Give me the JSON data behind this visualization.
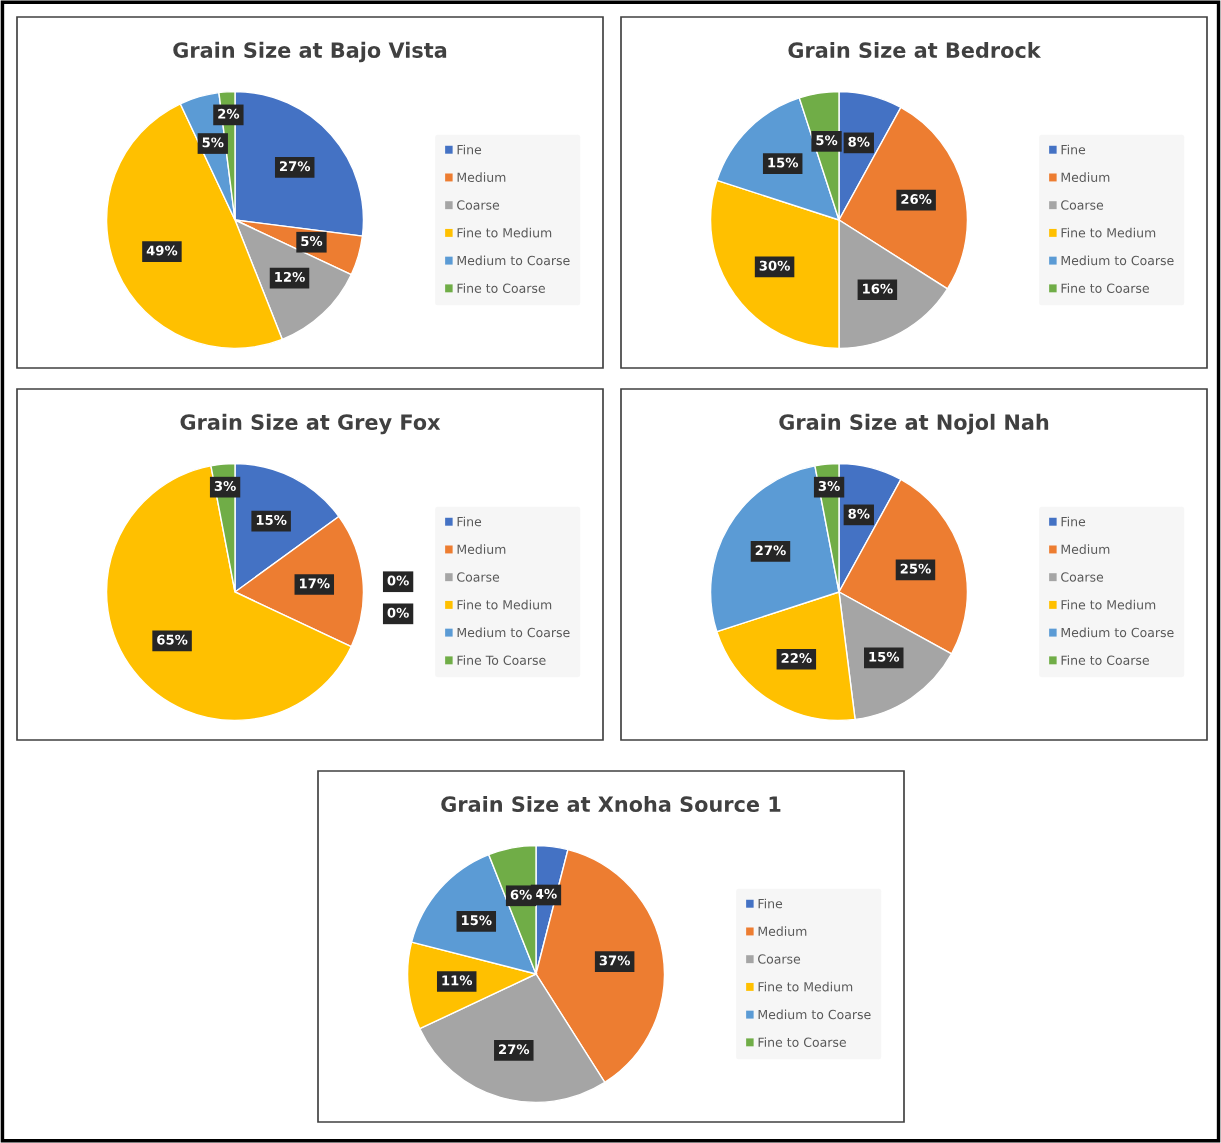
{
  "chart_data": [
    {
      "type": "pie",
      "title": "Grain Size at Bajo Vista",
      "categories": [
        "Fine",
        "Medium",
        "Coarse",
        "Fine to Medium",
        "Medium to Coarse",
        "Fine to Coarse"
      ],
      "values": [
        27,
        5,
        12,
        49,
        5,
        2
      ],
      "colors": [
        "#4472c4",
        "#ed7d31",
        "#a5a5a5",
        "#ffc000",
        "#5b9bd5",
        "#70ad47"
      ],
      "value_labels": [
        "27%",
        "5%",
        "12%",
        "49%",
        "5%",
        "2%"
      ],
      "legend": "right"
    },
    {
      "type": "pie",
      "title": "Grain Size at Bedrock",
      "categories": [
        "Fine",
        "Medium",
        "Coarse",
        "Fine to Medium",
        "Medium to Coarse",
        "Fine to Coarse"
      ],
      "values": [
        8,
        26,
        16,
        30,
        15,
        5
      ],
      "colors": [
        "#4472c4",
        "#ed7d31",
        "#a5a5a5",
        "#ffc000",
        "#5b9bd5",
        "#70ad47"
      ],
      "value_labels": [
        "8%",
        "26%",
        "16%",
        "30%",
        "15%",
        "5%"
      ],
      "legend": "right"
    },
    {
      "type": "pie",
      "title": "Grain Size at Grey Fox",
      "categories": [
        "Fine",
        "Medium",
        "Coarse",
        "Fine to Medium",
        "Medium to Coarse",
        "Fine To Coarse"
      ],
      "values": [
        15,
        17,
        0,
        65,
        0,
        3
      ],
      "colors": [
        "#4472c4",
        "#ed7d31",
        "#a5a5a5",
        "#ffc000",
        "#5b9bd5",
        "#70ad47"
      ],
      "value_labels": [
        "15%",
        "17%",
        "0%",
        "65%",
        "0%",
        "3%"
      ],
      "legend": "right"
    },
    {
      "type": "pie",
      "title": "Grain Size at Nojol Nah",
      "categories": [
        "Fine",
        "Medium",
        "Coarse",
        "Fine to Medium",
        "Medium to Coarse",
        "Fine to Coarse"
      ],
      "values": [
        8,
        25,
        15,
        22,
        27,
        3
      ],
      "colors": [
        "#4472c4",
        "#ed7d31",
        "#a5a5a5",
        "#ffc000",
        "#5b9bd5",
        "#70ad47"
      ],
      "value_labels": [
        "8%",
        "25%",
        "15%",
        "22%",
        "27%",
        "3%"
      ],
      "legend": "right"
    },
    {
      "type": "pie",
      "title": "Grain Size at Xnoha Source 1",
      "categories": [
        "Fine",
        "Medium",
        "Coarse",
        "Fine to Medium",
        "Medium to Coarse",
        "Fine to Coarse"
      ],
      "values": [
        4,
        37,
        27,
        11,
        15,
        6
      ],
      "colors": [
        "#4472c4",
        "#ed7d31",
        "#a5a5a5",
        "#ffc000",
        "#5b9bd5",
        "#70ad47"
      ],
      "value_labels": [
        "4%",
        "37%",
        "27%",
        "11%",
        "15%",
        "6%"
      ],
      "legend": "right"
    }
  ]
}
